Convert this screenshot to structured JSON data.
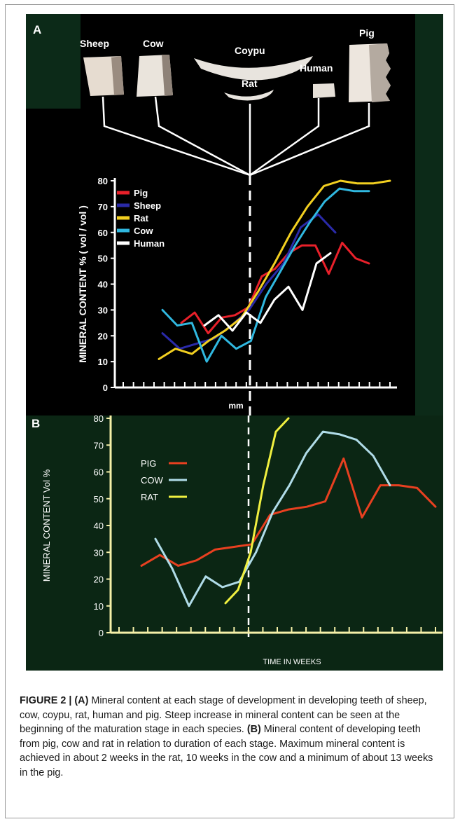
{
  "panel_a": {
    "label": "A",
    "tooth_labels": [
      "Sheep",
      "Cow",
      "Coypu",
      "Rat",
      "Human",
      "Pig"
    ],
    "x_label": "mm"
  },
  "panel_b": {
    "label": "B"
  },
  "caption": {
    "prefix": "FIGURE 2 | ",
    "a_tag": "(A)",
    "a_text": " Mineral content at each stage of development in developing teeth of sheep, cow, coypu, rat, human and pig. Steep increase in mineral content can be seen at the beginning of the maturation stage in each species. ",
    "b_tag": "(B)",
    "b_text": " Mineral content of developing teeth from pig, cow and rat in relation to duration of each stage. Maximum mineral content is achieved in about 2 weeks in the rat, 10 weeks in the cow and a minimum of about 13 weeks in the pig."
  },
  "chart_data": [
    {
      "type": "line",
      "ylabel": "MINERAL CONTENT % ( vol / vol )",
      "xlabel": "mm",
      "ylim": [
        0,
        80
      ],
      "yticks": [
        0,
        10,
        20,
        30,
        40,
        50,
        60,
        70,
        80
      ],
      "legend_position": "top-left",
      "series": [
        {
          "name": "Pig",
          "color": "#e8202a",
          "x": [
            0,
            1,
            2,
            3,
            4,
            5,
            6,
            7,
            8,
            9,
            10,
            11,
            12,
            13,
            14
          ],
          "y": [
            25,
            29,
            21,
            27,
            28,
            31,
            43,
            46,
            52,
            55,
            55,
            44,
            56,
            50,
            48
          ]
        },
        {
          "name": "Sheep",
          "color": "#2a2aa8",
          "x": [
            0,
            1,
            2,
            3,
            4,
            5,
            6,
            7,
            8,
            9,
            10
          ],
          "y": [
            21,
            15,
            17,
            19,
            24,
            30,
            40,
            48,
            62,
            67,
            60
          ]
        },
        {
          "name": "Rat",
          "color": "#f2cf20",
          "x": [
            0,
            1,
            2,
            3,
            4,
            5,
            6,
            7,
            8,
            9,
            10,
            11,
            12,
            13,
            14
          ],
          "y": [
            11,
            15,
            13,
            18,
            22,
            27,
            37,
            48,
            60,
            70,
            78,
            80,
            79,
            79,
            80
          ]
        },
        {
          "name": "Cow",
          "color": "#30b8e0",
          "x": [
            0,
            1,
            2,
            3,
            4,
            5,
            6,
            7,
            8,
            9,
            10,
            11,
            12,
            13,
            14
          ],
          "y": [
            30,
            24,
            25,
            10,
            20,
            15,
            18,
            35,
            45,
            55,
            64,
            72,
            77,
            76,
            76
          ]
        },
        {
          "name": "Human",
          "color": "#ffffff",
          "x": [
            0,
            1,
            2,
            3,
            4,
            5,
            6,
            7,
            8,
            9
          ],
          "y": [
            24,
            28,
            22,
            29,
            25,
            34,
            39,
            30,
            48,
            52
          ]
        }
      ]
    },
    {
      "type": "line",
      "ylabel": "MINERAL CONTENT Vol %",
      "xlabel": "TIME IN WEEKS",
      "ylim": [
        0,
        80
      ],
      "yticks": [
        0,
        10,
        20,
        30,
        40,
        50,
        60,
        70,
        80
      ],
      "legend_position": "top-left",
      "series": [
        {
          "name": "PIG",
          "color": "#e84020",
          "x": [
            0,
            1,
            2,
            3,
            4,
            5,
            6,
            7,
            8,
            9,
            10,
            11,
            12,
            13,
            14,
            15,
            16
          ],
          "y": [
            25,
            29,
            25,
            27,
            31,
            32,
            33,
            44,
            46,
            47,
            49,
            65,
            43,
            55,
            55,
            54,
            47
          ]
        },
        {
          "name": "COW",
          "color": "#b0dce8",
          "x": [
            0,
            1,
            2,
            3,
            4,
            5,
            6,
            7,
            8,
            9,
            10,
            11,
            12,
            13,
            14
          ],
          "y": [
            35,
            24,
            10,
            21,
            17,
            19,
            30,
            45,
            55,
            67,
            75,
            74,
            72,
            66,
            55
          ]
        },
        {
          "name": "RAT",
          "color": "#f0f040",
          "x": [
            0,
            0.5,
            1,
            1.5,
            2,
            2.5
          ],
          "y": [
            11,
            16,
            30,
            55,
            75,
            80
          ]
        }
      ]
    }
  ]
}
